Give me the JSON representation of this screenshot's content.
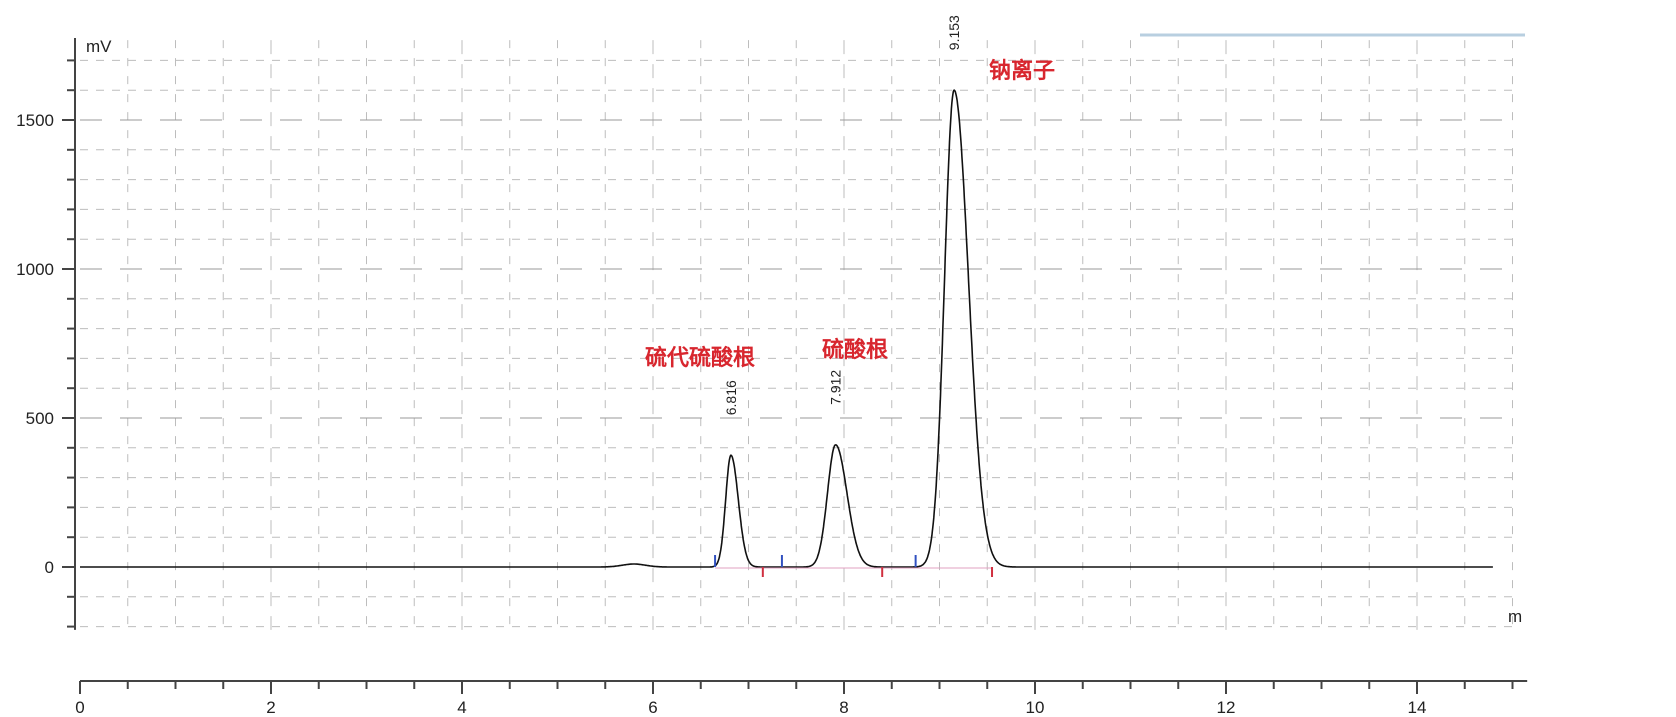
{
  "chart_data": {
    "type": "line",
    "ylabel": "mV",
    "xlabel": "m",
    "xlim": [
      0,
      15.07
    ],
    "ylim": [
      -211,
      1768
    ],
    "x_ticks": [
      0,
      2,
      4,
      6,
      8,
      10,
      12,
      14
    ],
    "y_ticks": [
      0,
      500,
      1000,
      1500
    ],
    "grid": true,
    "trace_end": 14.8,
    "peaks": [
      {
        "rt": 6.816,
        "label": "6.816",
        "height": 375,
        "sigma": 0.055,
        "tail": 1.4,
        "name": "硫代硫酸根"
      },
      {
        "rt": 7.912,
        "label": "7.912",
        "height": 410,
        "sigma": 0.085,
        "tail": 1.4,
        "name": "硫酸根"
      },
      {
        "rt": 9.153,
        "label": "9.153",
        "height": 1600,
        "sigma": 0.1,
        "tail": 1.5,
        "name": "钠离子"
      }
    ],
    "minor_bump": {
      "rt": 5.8,
      "height": 10
    },
    "integration_start_marks": [
      6.65,
      7.35,
      8.75
    ],
    "integration_end_marks": [
      7.15,
      8.4,
      9.55
    ],
    "colors": {
      "trace": "#111111",
      "annotation": "#d8262e",
      "start_mark": "#3050c0",
      "end_mark": "#d03040",
      "grid": "#bdbdbd",
      "top_bar": "#b8cfe0"
    }
  }
}
